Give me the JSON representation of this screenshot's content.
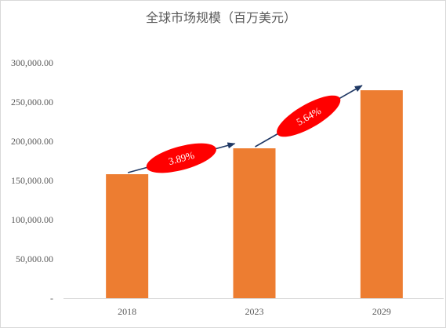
{
  "chart_data": {
    "type": "bar",
    "title": "全球市场规模（百万美元）",
    "categories": [
      "2018",
      "2023",
      "2029"
    ],
    "values": [
      158000,
      191000,
      265000
    ],
    "ylim": [
      0,
      300000
    ],
    "yticks": [
      {
        "value": 0,
        "label": "-"
      },
      {
        "value": 50000,
        "label": "50,000.00"
      },
      {
        "value": 100000,
        "label": "100,000.00"
      },
      {
        "value": 150000,
        "label": "150,000.00"
      },
      {
        "value": 200000,
        "label": "200,000.00"
      },
      {
        "value": 250000,
        "label": "250,000.00"
      },
      {
        "value": 300000,
        "label": "300,000.00"
      }
    ],
    "grid": false,
    "bar_color": "#ED7D31",
    "annotations": [
      {
        "label": "3.89%",
        "from": "2018",
        "to": "2023",
        "color": "#FF0000",
        "arrow_color": "#1F3864"
      },
      {
        "label": "5.64%",
        "from": "2023",
        "to": "2029",
        "color": "#FF0000",
        "arrow_color": "#1F3864"
      }
    ]
  }
}
